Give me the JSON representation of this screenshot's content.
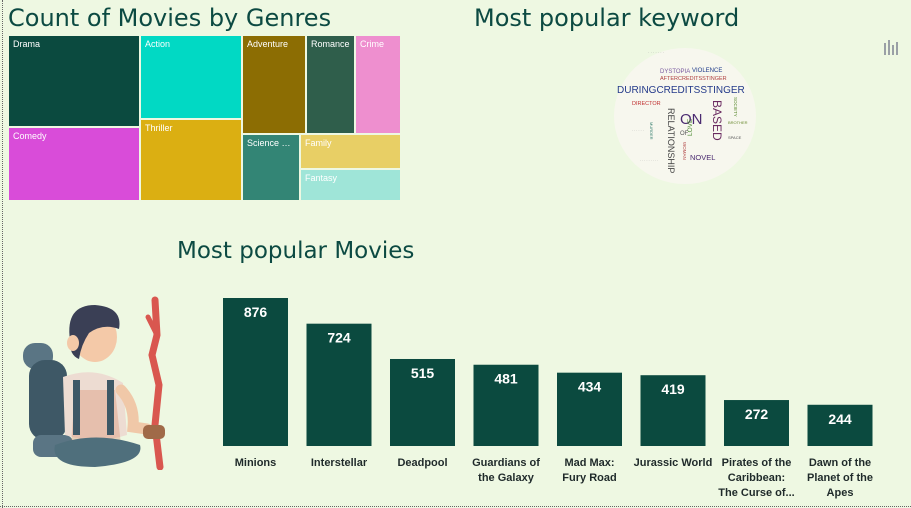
{
  "treemap": {
    "title": "Count of Movies by Genres",
    "tiles": [
      {
        "label": "Drama",
        "color": "#0b4a3f"
      },
      {
        "label": "Action",
        "color": "#01d9c4"
      },
      {
        "label": "Adventure",
        "color": "#8c6d03"
      },
      {
        "label": "Romance",
        "color": "#2f5e4b"
      },
      {
        "label": "Crime",
        "color": "#ee8fcf"
      },
      {
        "label": "Comedy",
        "color": "#d94cd9"
      },
      {
        "label": "Thriller",
        "color": "#dbaf12"
      },
      {
        "label": "Science Fi...",
        "color": "#338575"
      },
      {
        "label": "Family",
        "color": "#e8cf65"
      },
      {
        "label": "Fantasy",
        "color": "#9fe5d8"
      }
    ]
  },
  "wordcloud": {
    "title": "Most popular keyword",
    "words": {
      "during": "DURINGCREDITSSTINGER",
      "based": "BASED",
      "on": "ON",
      "relationship": "RELATIONSHIP",
      "novel": "NOVEL",
      "love": "LOVE",
      "after": "AFTERCREDITSSTINGER",
      "violence": "VIOLENCE",
      "dystopia": "DYSTOPIA",
      "director": "DIRECTOR",
      "woman": "WOMAN",
      "of": "OF",
      "society": "SOCIETY",
      "murder": "MURDER",
      "brother": "BROTHER",
      "space": "SPACE"
    }
  },
  "bar_title": "Most popular Movies",
  "colors": {
    "bar": "#0b4a3f",
    "title": "#0c4a42",
    "background": "#eef8e2"
  },
  "chart_data": {
    "type": "bar",
    "title": "Most popular Movies",
    "categories": [
      [
        "Minions"
      ],
      [
        "Interstellar"
      ],
      [
        "Deadpool"
      ],
      [
        "Guardians of",
        "the Galaxy"
      ],
      [
        "Mad Max:",
        "Fury Road"
      ],
      [
        "Jurassic World"
      ],
      [
        "Pirates of the",
        "Caribbean:",
        "The Curse of..."
      ],
      [
        "Dawn of the",
        "Planet of the",
        "Apes"
      ]
    ],
    "values": [
      876,
      724,
      515,
      481,
      434,
      419,
      272,
      244
    ],
    "data_labels": true,
    "grid": false,
    "ylim": [
      0,
      876
    ]
  }
}
